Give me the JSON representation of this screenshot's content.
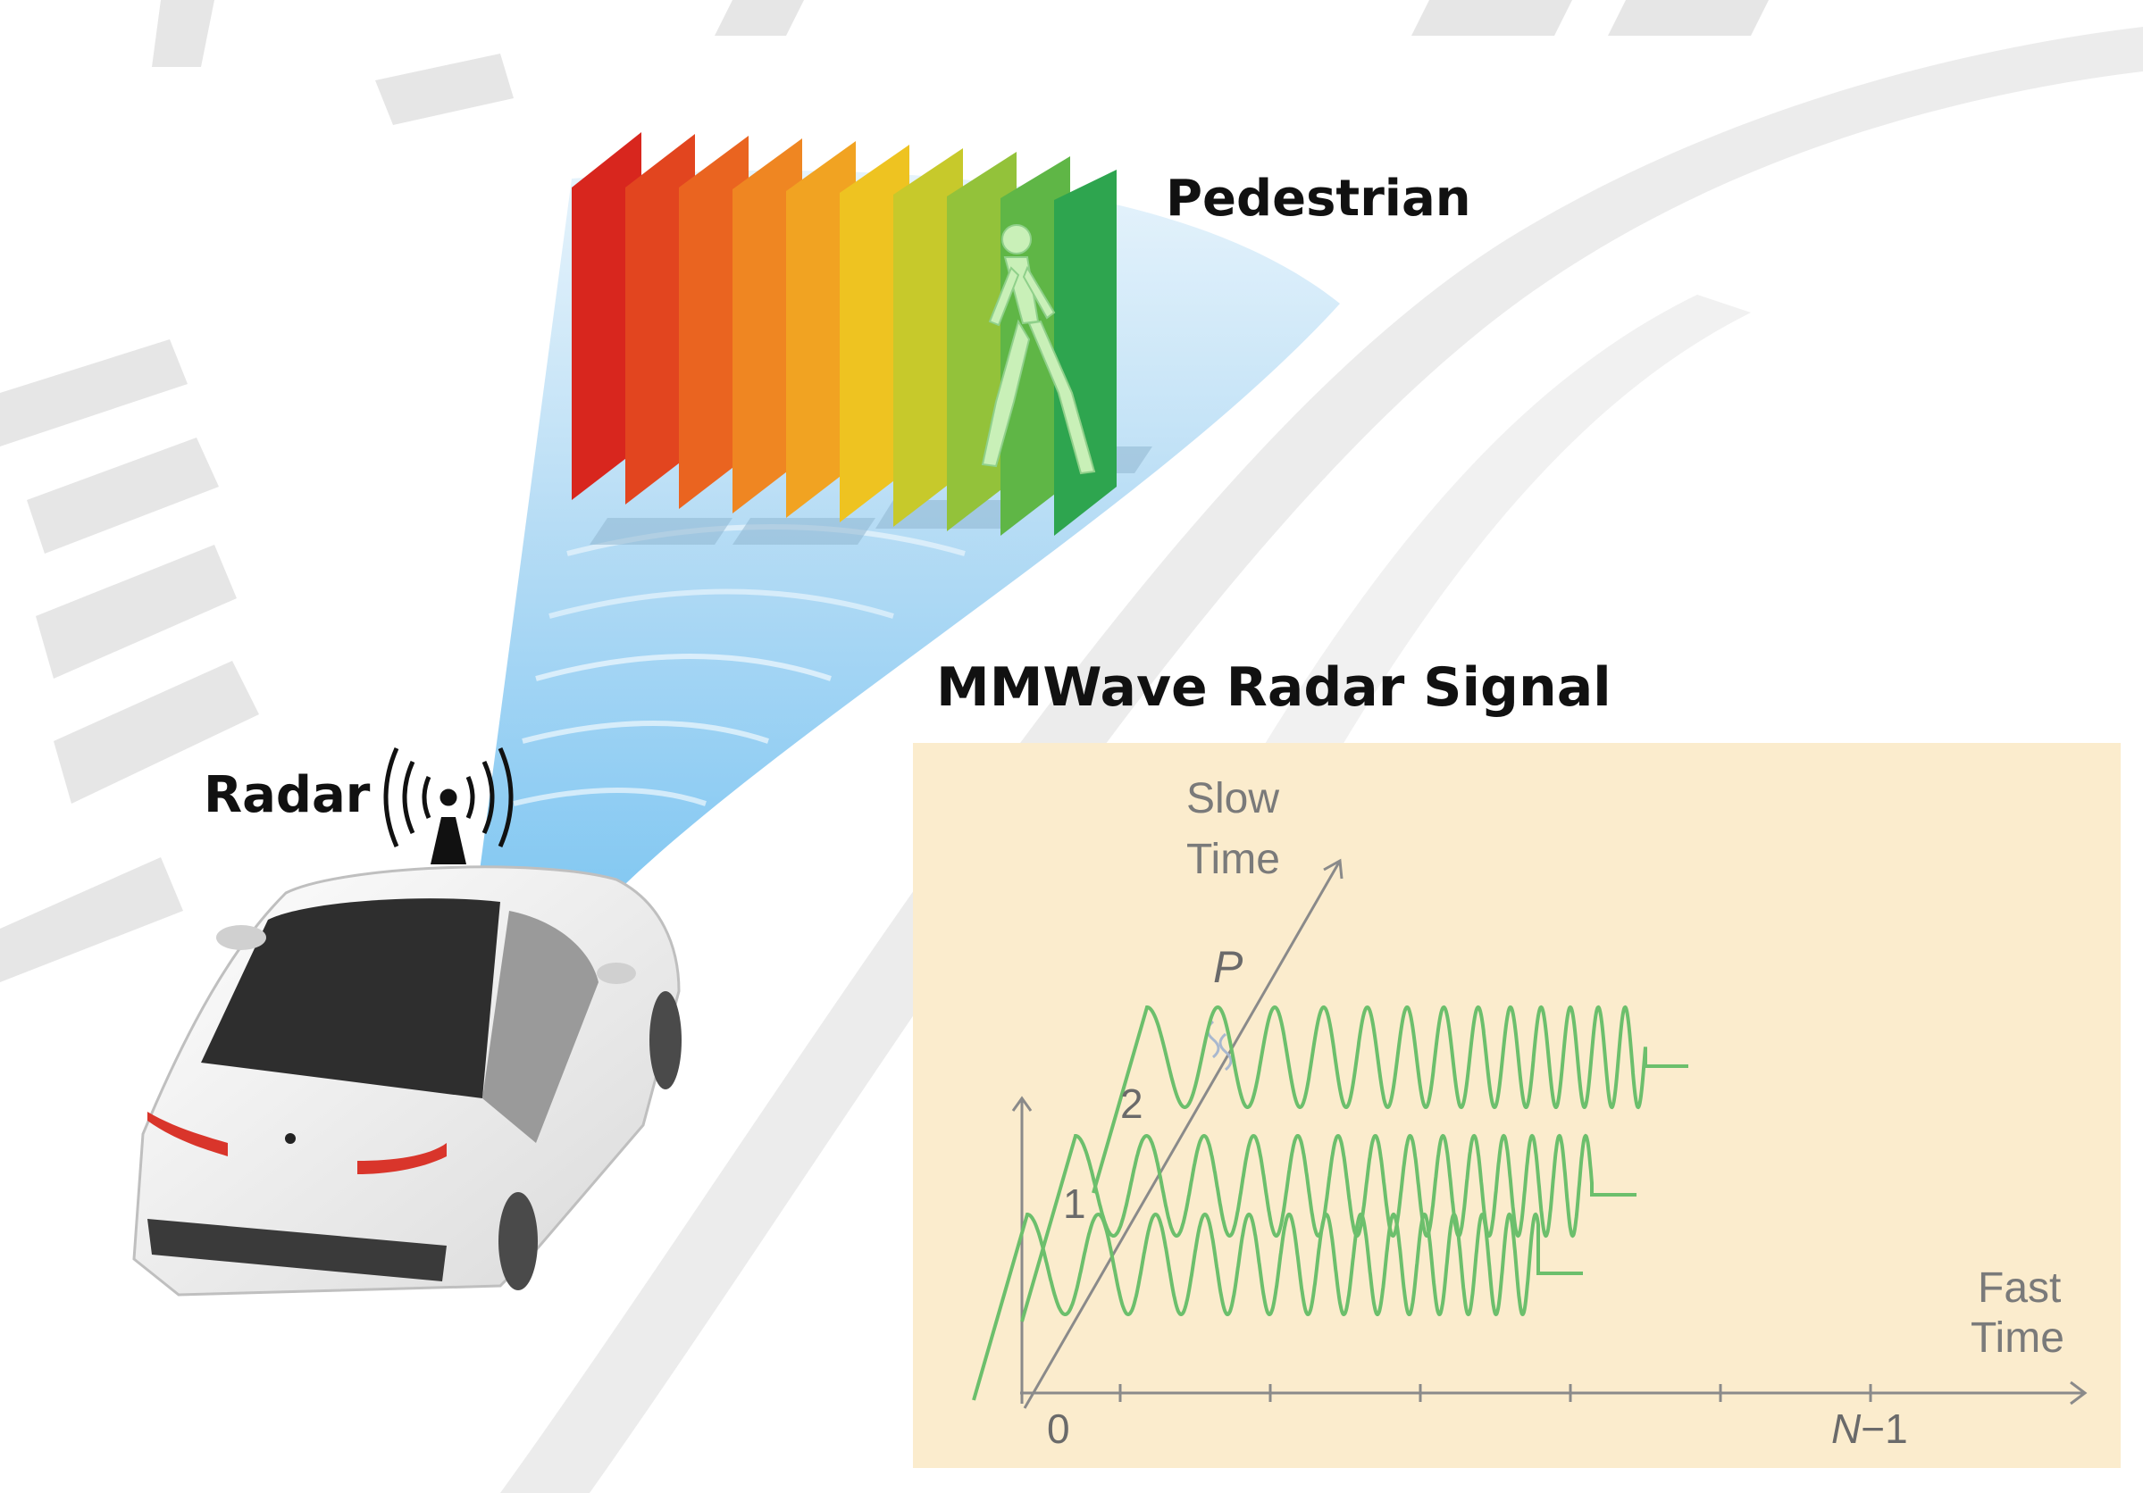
{
  "labels": {
    "pedestrian": "Pedestrian",
    "signal_title": "MMWave Radar Signal",
    "radar": "Radar"
  },
  "signal_diagram": {
    "slow_time_line1": "Slow",
    "slow_time_line2": "Time",
    "fast_time_line1": "Fast",
    "fast_time_line2": "Time",
    "origin": "0",
    "last_sample_italic": "N",
    "last_sample_suffix": "−1",
    "chirp_1": "1",
    "chirp_2": "2",
    "chirp_p": "P"
  },
  "colors": {
    "wave": "#6cbf6c",
    "axis": "#8a8a8a",
    "panel": "#fbeccd",
    "beam": "#a9d6f3",
    "road_stripe": "#e3e3e3",
    "car_body": "#f4f4f4",
    "tail_light": "#d9352b"
  },
  "icons": {
    "radar": "radar-antenna-icon",
    "car": "car-illustration",
    "pedestrian": "walking-person-icon"
  }
}
